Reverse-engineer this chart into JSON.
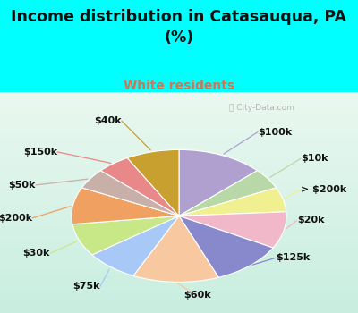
{
  "title": "Income distribution in Catasauqua, PA\n(%)",
  "subtitle": "White residents",
  "title_color": "#111111",
  "subtitle_color": "#cc7755",
  "bg_top_color": "#00FFFF",
  "chart_bg_gradient_top": "#f0faf0",
  "chart_bg_gradient_bottom": "#d0ede8",
  "labels": [
    "$100k",
    "$10k",
    "> $200k",
    "$20k",
    "$125k",
    "$60k",
    "$75k",
    "$30k",
    "$200k",
    "$50k",
    "$150k",
    "$40k"
  ],
  "values": [
    13,
    5,
    6,
    9,
    11,
    13,
    8,
    8,
    9,
    5,
    5,
    8
  ],
  "colors": [
    "#b0a0d0",
    "#b8d8a8",
    "#f0f090",
    "#f0b8c8",
    "#8888cc",
    "#f8c8a0",
    "#a8c8f8",
    "#c8e888",
    "#f0a060",
    "#c8b0a8",
    "#e88888",
    "#c8a030"
  ],
  "label_fontsize": 8,
  "title_fontsize": 12.5,
  "subtitle_fontsize": 10
}
